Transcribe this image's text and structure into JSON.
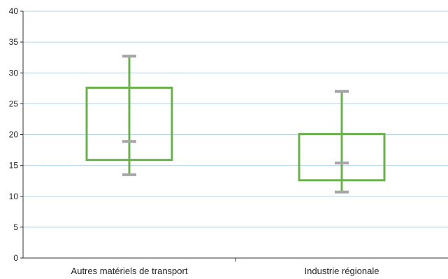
{
  "chart_data": {
    "type": "box",
    "title": "",
    "xlabel": "",
    "ylabel": "",
    "ylim": [
      0,
      40
    ],
    "yticks": [
      0,
      5,
      10,
      15,
      20,
      25,
      30,
      35,
      40
    ],
    "grid": true,
    "categories": [
      "Autres matériels de transport",
      "Industrie régionale"
    ],
    "boxes": [
      {
        "category": "Autres matériels de transport",
        "min": 13.5,
        "q1": 15.9,
        "median": 18.9,
        "q3": 27.6,
        "max": 32.7
      },
      {
        "category": "Industrie régionale",
        "min": 10.7,
        "q1": 12.6,
        "median": 15.4,
        "q3": 20.1,
        "max": 27.0
      }
    ],
    "colors": {
      "box": "#6ab04c",
      "whisker": "#6ab04c",
      "cap": "#a6a6a6",
      "grid": "#b7d3e6",
      "axis": "#333333"
    }
  }
}
